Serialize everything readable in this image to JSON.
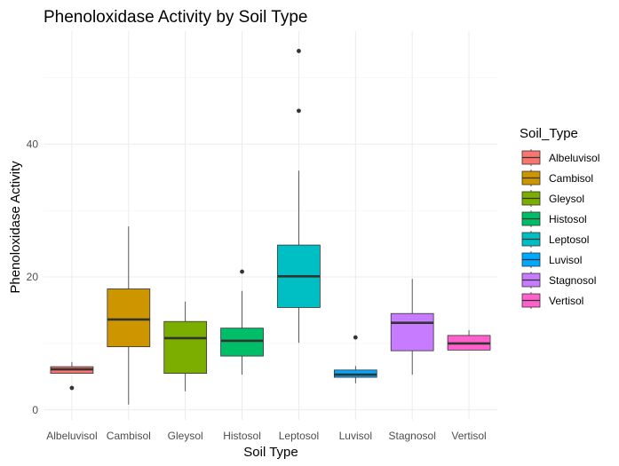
{
  "chart_data": {
    "type": "boxplot",
    "title": "Phenoloxidase Activity by Soil Type",
    "xlabel": "Soil Type",
    "ylabel": "Phenoloxidase Activity",
    "ylim": [
      -1.5,
      57
    ],
    "y_ticks": [
      0,
      20,
      40
    ],
    "grid": true,
    "legend": {
      "title": "Soil_Type",
      "position": "right"
    },
    "categories": [
      "Albeluvisol",
      "Cambisol",
      "Gleysol",
      "Histosol",
      "Leptosol",
      "Luvisol",
      "Stagnosol",
      "Vertisol"
    ],
    "series": [
      {
        "name": "Albeluvisol",
        "color": "#F8766D",
        "whisker_low": 5.5,
        "q1": 5.5,
        "median": 6.1,
        "q3": 6.5,
        "whisker_high": 7.2,
        "outliers": [
          3.3
        ]
      },
      {
        "name": "Cambisol",
        "color": "#CD9600",
        "whisker_low": 0.8,
        "q1": 9.5,
        "median": 13.6,
        "q3": 18.2,
        "whisker_high": 27.6,
        "outliers": []
      },
      {
        "name": "Gleysol",
        "color": "#7CAE00",
        "whisker_low": 2.8,
        "q1": 5.5,
        "median": 10.8,
        "q3": 13.3,
        "whisker_high": 16.3,
        "outliers": []
      },
      {
        "name": "Histosol",
        "color": "#00BE67",
        "whisker_low": 5.3,
        "q1": 8.1,
        "median": 10.4,
        "q3": 12.3,
        "whisker_high": 17.9,
        "outliers": [
          20.8
        ]
      },
      {
        "name": "Leptosol",
        "color": "#00BFC4",
        "whisker_low": 10.1,
        "q1": 15.4,
        "median": 20.1,
        "q3": 24.8,
        "whisker_high": 36.0,
        "outliers": [
          45.0,
          54.0
        ]
      },
      {
        "name": "Luvisol",
        "color": "#00A9FF",
        "whisker_low": 4.0,
        "q1": 4.9,
        "median": 5.3,
        "q3": 6.0,
        "whisker_high": 6.6,
        "outliers": [
          10.9
        ]
      },
      {
        "name": "Stagnosol",
        "color": "#C77CFF",
        "whisker_low": 5.3,
        "q1": 8.9,
        "median": 13.1,
        "q3": 14.5,
        "whisker_high": 19.7,
        "outliers": []
      },
      {
        "name": "Vertisol",
        "color": "#FF61CC",
        "whisker_low": 9.0,
        "q1": 9.0,
        "median": 10.0,
        "q3": 11.2,
        "whisker_high": 12.0,
        "outliers": []
      }
    ]
  }
}
